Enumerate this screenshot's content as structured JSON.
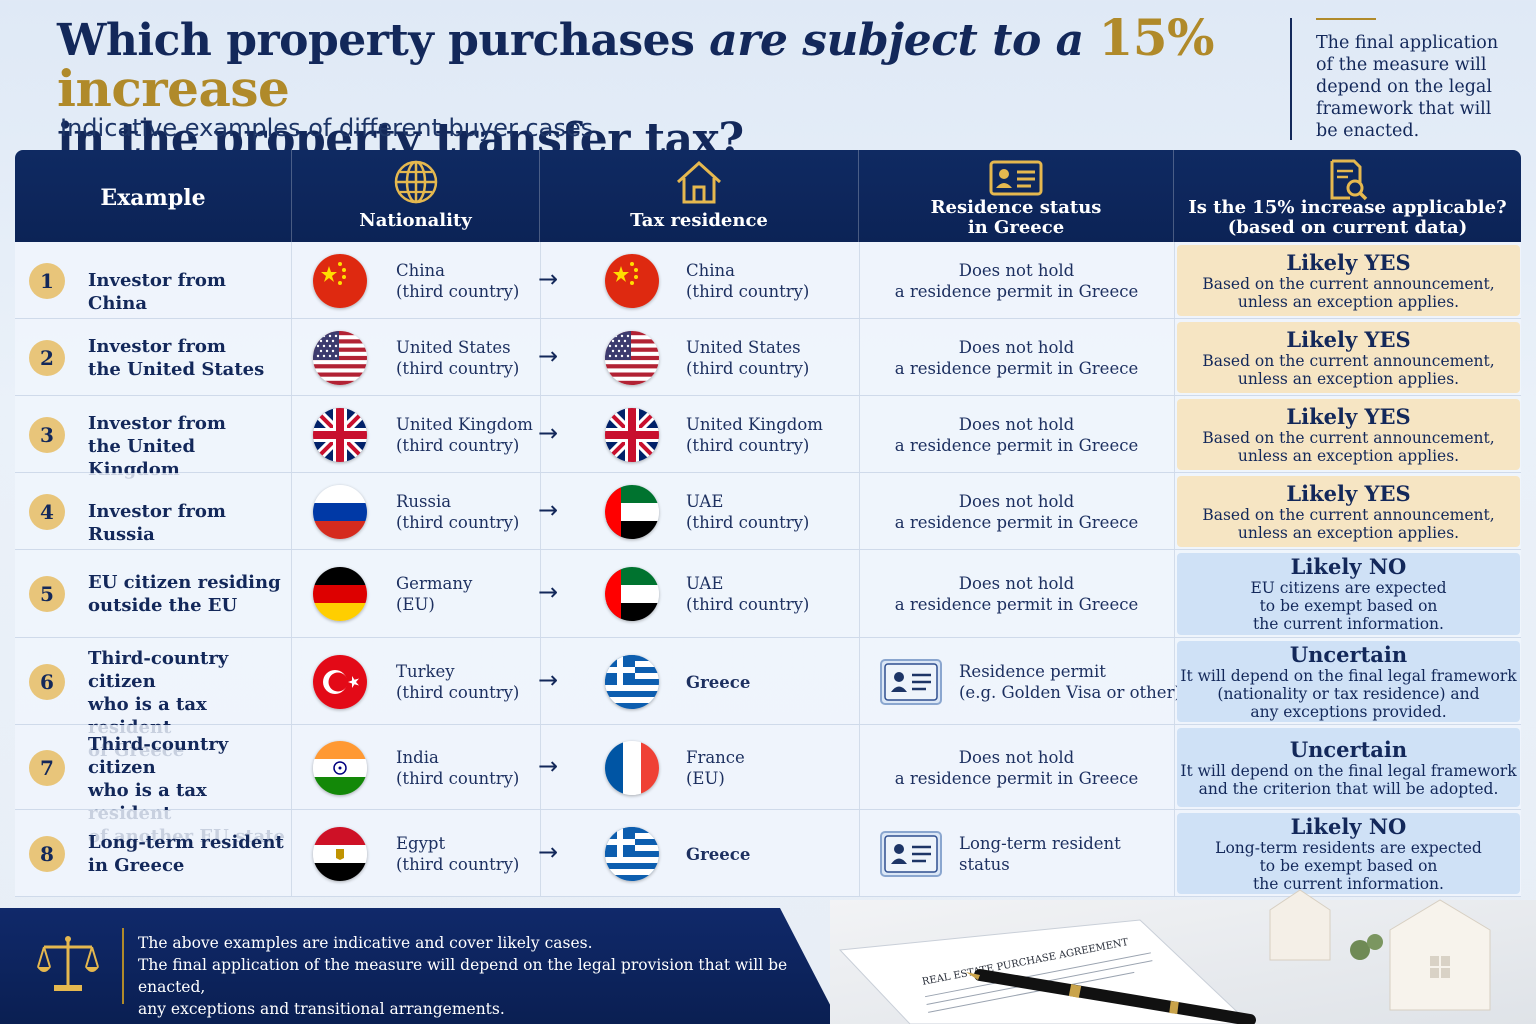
{
  "title": {
    "part1": "Which property purchases ",
    "part2": "are subject to a ",
    "part3": "15% increase",
    "part4": "in the property transfer tax?"
  },
  "subtitle": "Indicative examples of different buyer cases",
  "side_note": "The final application of the measure will depend on the legal framework that will be enacted.",
  "headers": {
    "example": "Example",
    "nationality": "Nationality",
    "tax_residence": "Tax residence",
    "residence_status_1": "Residence status",
    "residence_status_2": "in Greece",
    "applicable_1": "Is the 15% increase applicable?",
    "applicable_2": "(based on current data)"
  },
  "icons": {
    "nationality": "globe-icon",
    "tax_residence": "house-icon",
    "residence_status": "id-card-icon",
    "applicable": "document-search-icon",
    "footer": "scales-icon"
  },
  "colors": {
    "navy": "#13285a",
    "gold": "#b08a2a",
    "yes_bg": "#f6e5c3",
    "no_bg": "#cfe1f6"
  },
  "rows": [
    {
      "num": "1",
      "example": [
        "Investor from China"
      ],
      "nat_flag": "china-flag",
      "nat_country": "China",
      "nat_group": "(third country)",
      "arrow": "→",
      "tax_flag": "china-flag",
      "tax_country": "China",
      "tax_group": "(third country)",
      "status": [
        "Does not hold",
        "a residence permit in Greece"
      ],
      "answer_type": "yes",
      "answer_head": "Likely YES",
      "answer_body": [
        "Based on the current announcement,",
        "unless an exception applies."
      ]
    },
    {
      "num": "2",
      "example": [
        "Investor from",
        "the United States"
      ],
      "nat_flag": "usa-flag",
      "nat_country": "United States",
      "nat_group": "(third country)",
      "arrow": "→",
      "tax_flag": "usa-flag",
      "tax_country": "United States",
      "tax_group": "(third country)",
      "status": [
        "Does not hold",
        "a residence permit in Greece"
      ],
      "answer_type": "yes",
      "answer_head": "Likely YES",
      "answer_body": [
        "Based on the current announcement,",
        "unless an exception applies."
      ]
    },
    {
      "num": "3",
      "example": [
        "Investor from",
        "the United Kingdom"
      ],
      "nat_flag": "uk-flag",
      "nat_country": "United Kingdom",
      "nat_group": "(third country)",
      "arrow": "→",
      "tax_flag": "uk-flag",
      "tax_country": "United Kingdom",
      "tax_group": "(third country)",
      "status": [
        "Does not hold",
        "a residence permit in Greece"
      ],
      "answer_type": "yes",
      "answer_head": "Likely YES",
      "answer_body": [
        "Based on the current announcement,",
        "unless an exception applies."
      ]
    },
    {
      "num": "4",
      "example": [
        "Investor from Russia"
      ],
      "nat_flag": "russia-flag",
      "nat_country": "Russia",
      "nat_group": "(third country)",
      "arrow": "→",
      "tax_flag": "uae-flag",
      "tax_country": "UAE",
      "tax_group": "(third country)",
      "status": [
        "Does not hold",
        "a residence permit in Greece"
      ],
      "answer_type": "yes",
      "answer_head": "Likely YES",
      "answer_body": [
        "Based on the current announcement,",
        "unless an exception applies."
      ]
    },
    {
      "num": "5",
      "example": [
        "EU citizen residing",
        "outside the EU"
      ],
      "nat_flag": "germany-flag",
      "nat_country": "Germany",
      "nat_group": "(EU)",
      "arrow": "→",
      "tax_flag": "uae-flag",
      "tax_country": "UAE",
      "tax_group": "(third country)",
      "status": [
        "Does not hold",
        "a residence permit in Greece"
      ],
      "answer_type": "no",
      "answer_head": "Likely NO",
      "answer_body": [
        "EU citizens are expected",
        "to be exempt based on",
        "the current information."
      ]
    },
    {
      "num": "6",
      "example": [
        "Third-country citizen",
        "who is a tax resident",
        "of Greece"
      ],
      "nat_flag": "turkey-flag",
      "nat_country": "Turkey",
      "nat_group": "(third country)",
      "arrow": "→",
      "tax_flag": "greece-flag",
      "tax_country": "Greece",
      "tax_group": "",
      "status_icon": "id-card-icon",
      "status": [
        "Residence permit",
        "(e.g. Golden Visa or other)"
      ],
      "answer_type": "no",
      "answer_head": "Uncertain",
      "answer_body": [
        "It will depend on the final legal framework",
        "(nationality or tax residence) and",
        "any exceptions provided."
      ]
    },
    {
      "num": "7",
      "example": [
        "Third-country citizen",
        "who is a tax resident",
        "of another EU state"
      ],
      "nat_flag": "india-flag",
      "nat_country": "India",
      "nat_group": "(third country)",
      "arrow": "→",
      "tax_flag": "france-flag",
      "tax_country": "France",
      "tax_group": "(EU)",
      "status": [
        "Does not hold",
        "a residence permit in Greece"
      ],
      "answer_type": "no",
      "answer_head": "Uncertain",
      "answer_body": [
        "It will depend on the final legal framework",
        "and the criterion that will be adopted."
      ]
    },
    {
      "num": "8",
      "example": [
        "Long-term resident",
        "in Greece"
      ],
      "nat_flag": "egypt-flag",
      "nat_country": "Egypt",
      "nat_group": "(third country)",
      "arrow": "→",
      "tax_flag": "greece-flag",
      "tax_country": "Greece",
      "tax_group": "",
      "status_icon": "id-card-icon",
      "status": [
        "Long-term resident",
        "status"
      ],
      "answer_type": "no",
      "answer_head": "Likely NO",
      "answer_body": [
        "Long-term residents are expected",
        "to be exempt based on",
        "the current information."
      ]
    }
  ],
  "footer": {
    "line1": "The above examples are indicative and cover likely cases.",
    "line2": "The final application of the measure will depend on the legal provision that will be enacted,",
    "line3": "any exceptions and transitional arrangements."
  },
  "document_title": "REAL ESTATE PURCHASE AGREEMENT"
}
